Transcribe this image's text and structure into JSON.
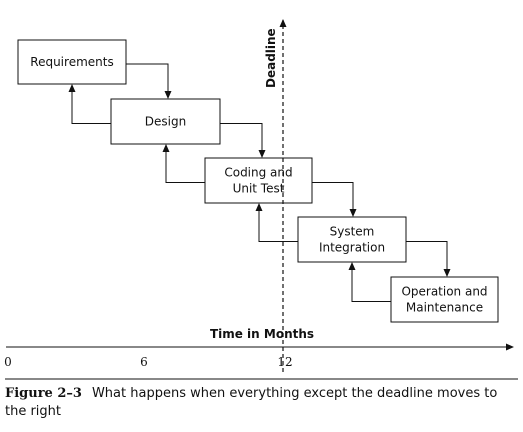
{
  "diagram": {
    "boxes": [
      {
        "id": "requirements",
        "lines": [
          "Requirements"
        ]
      },
      {
        "id": "design",
        "lines": [
          "Design"
        ]
      },
      {
        "id": "coding-unit-test",
        "lines": [
          "Coding and",
          "Unit Test"
        ]
      },
      {
        "id": "system-integration",
        "lines": [
          "System",
          "Integration"
        ]
      },
      {
        "id": "operation-maintenance",
        "lines": [
          "Operation and",
          "Maintenance"
        ]
      }
    ],
    "deadline_label": "Deadline",
    "axis": {
      "title": "Time in Months",
      "ticks": [
        "0",
        "6",
        "12"
      ]
    }
  },
  "caption": {
    "figure_number": "Figure 2–3",
    "text": "What happens when everything except the deadline moves to the right"
  }
}
